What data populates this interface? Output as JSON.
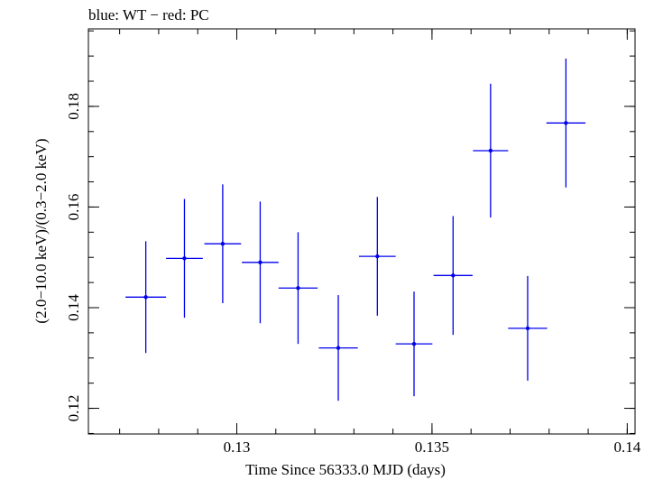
{
  "chart_data": {
    "type": "scatter",
    "title": "blue: WT − red: PC",
    "xlabel": "Time Since 56333.0 MJD (days)",
    "ylabel": "(2.0−10.0 keV)/(0.3−2.0 keV)",
    "xlim": [
      0.1262,
      0.1402
    ],
    "ylim": [
      0.1149,
      0.1954
    ],
    "x_ticks": [
      0.13,
      0.135,
      0.14
    ],
    "x_tick_labels": [
      "0.13",
      "0.135",
      "0.14"
    ],
    "y_ticks": [
      0.12,
      0.14,
      0.16,
      0.18
    ],
    "y_tick_labels": [
      "0.12",
      "0.14",
      "0.16",
      "0.18"
    ],
    "grid": false,
    "series": [
      {
        "color": "#0000ee",
        "points": [
          {
            "x": 0.12767,
            "xerr": 0.00052,
            "y": 0.1421,
            "yerr": 0.0111
          },
          {
            "x": 0.12866,
            "xerr": 0.00047,
            "y": 0.1498,
            "yerr": 0.0118
          },
          {
            "x": 0.12964,
            "xerr": 0.00047,
            "y": 0.1527,
            "yerr": 0.0118
          },
          {
            "x": 0.1306,
            "xerr": 0.00047,
            "y": 0.149,
            "yerr": 0.0121
          },
          {
            "x": 0.13157,
            "xerr": 0.0005,
            "y": 0.1439,
            "yerr": 0.0111
          },
          {
            "x": 0.1326,
            "xerr": 0.0005,
            "y": 0.132,
            "yerr": 0.0105
          },
          {
            "x": 0.1336,
            "xerr": 0.00047,
            "y": 0.1502,
            "yerr": 0.0118
          },
          {
            "x": 0.13454,
            "xerr": 0.00047,
            "y": 0.1328,
            "yerr": 0.0104
          },
          {
            "x": 0.13554,
            "xerr": 0.0005,
            "y": 0.1464,
            "yerr": 0.0118
          },
          {
            "x": 0.1365,
            "xerr": 0.00045,
            "y": 0.1712,
            "yerr": 0.0133
          },
          {
            "x": 0.13745,
            "xerr": 0.0005,
            "y": 0.1359,
            "yerr": 0.0104
          },
          {
            "x": 0.13843,
            "xerr": 0.0005,
            "y": 0.1767,
            "yerr": 0.0128
          }
        ]
      }
    ]
  }
}
